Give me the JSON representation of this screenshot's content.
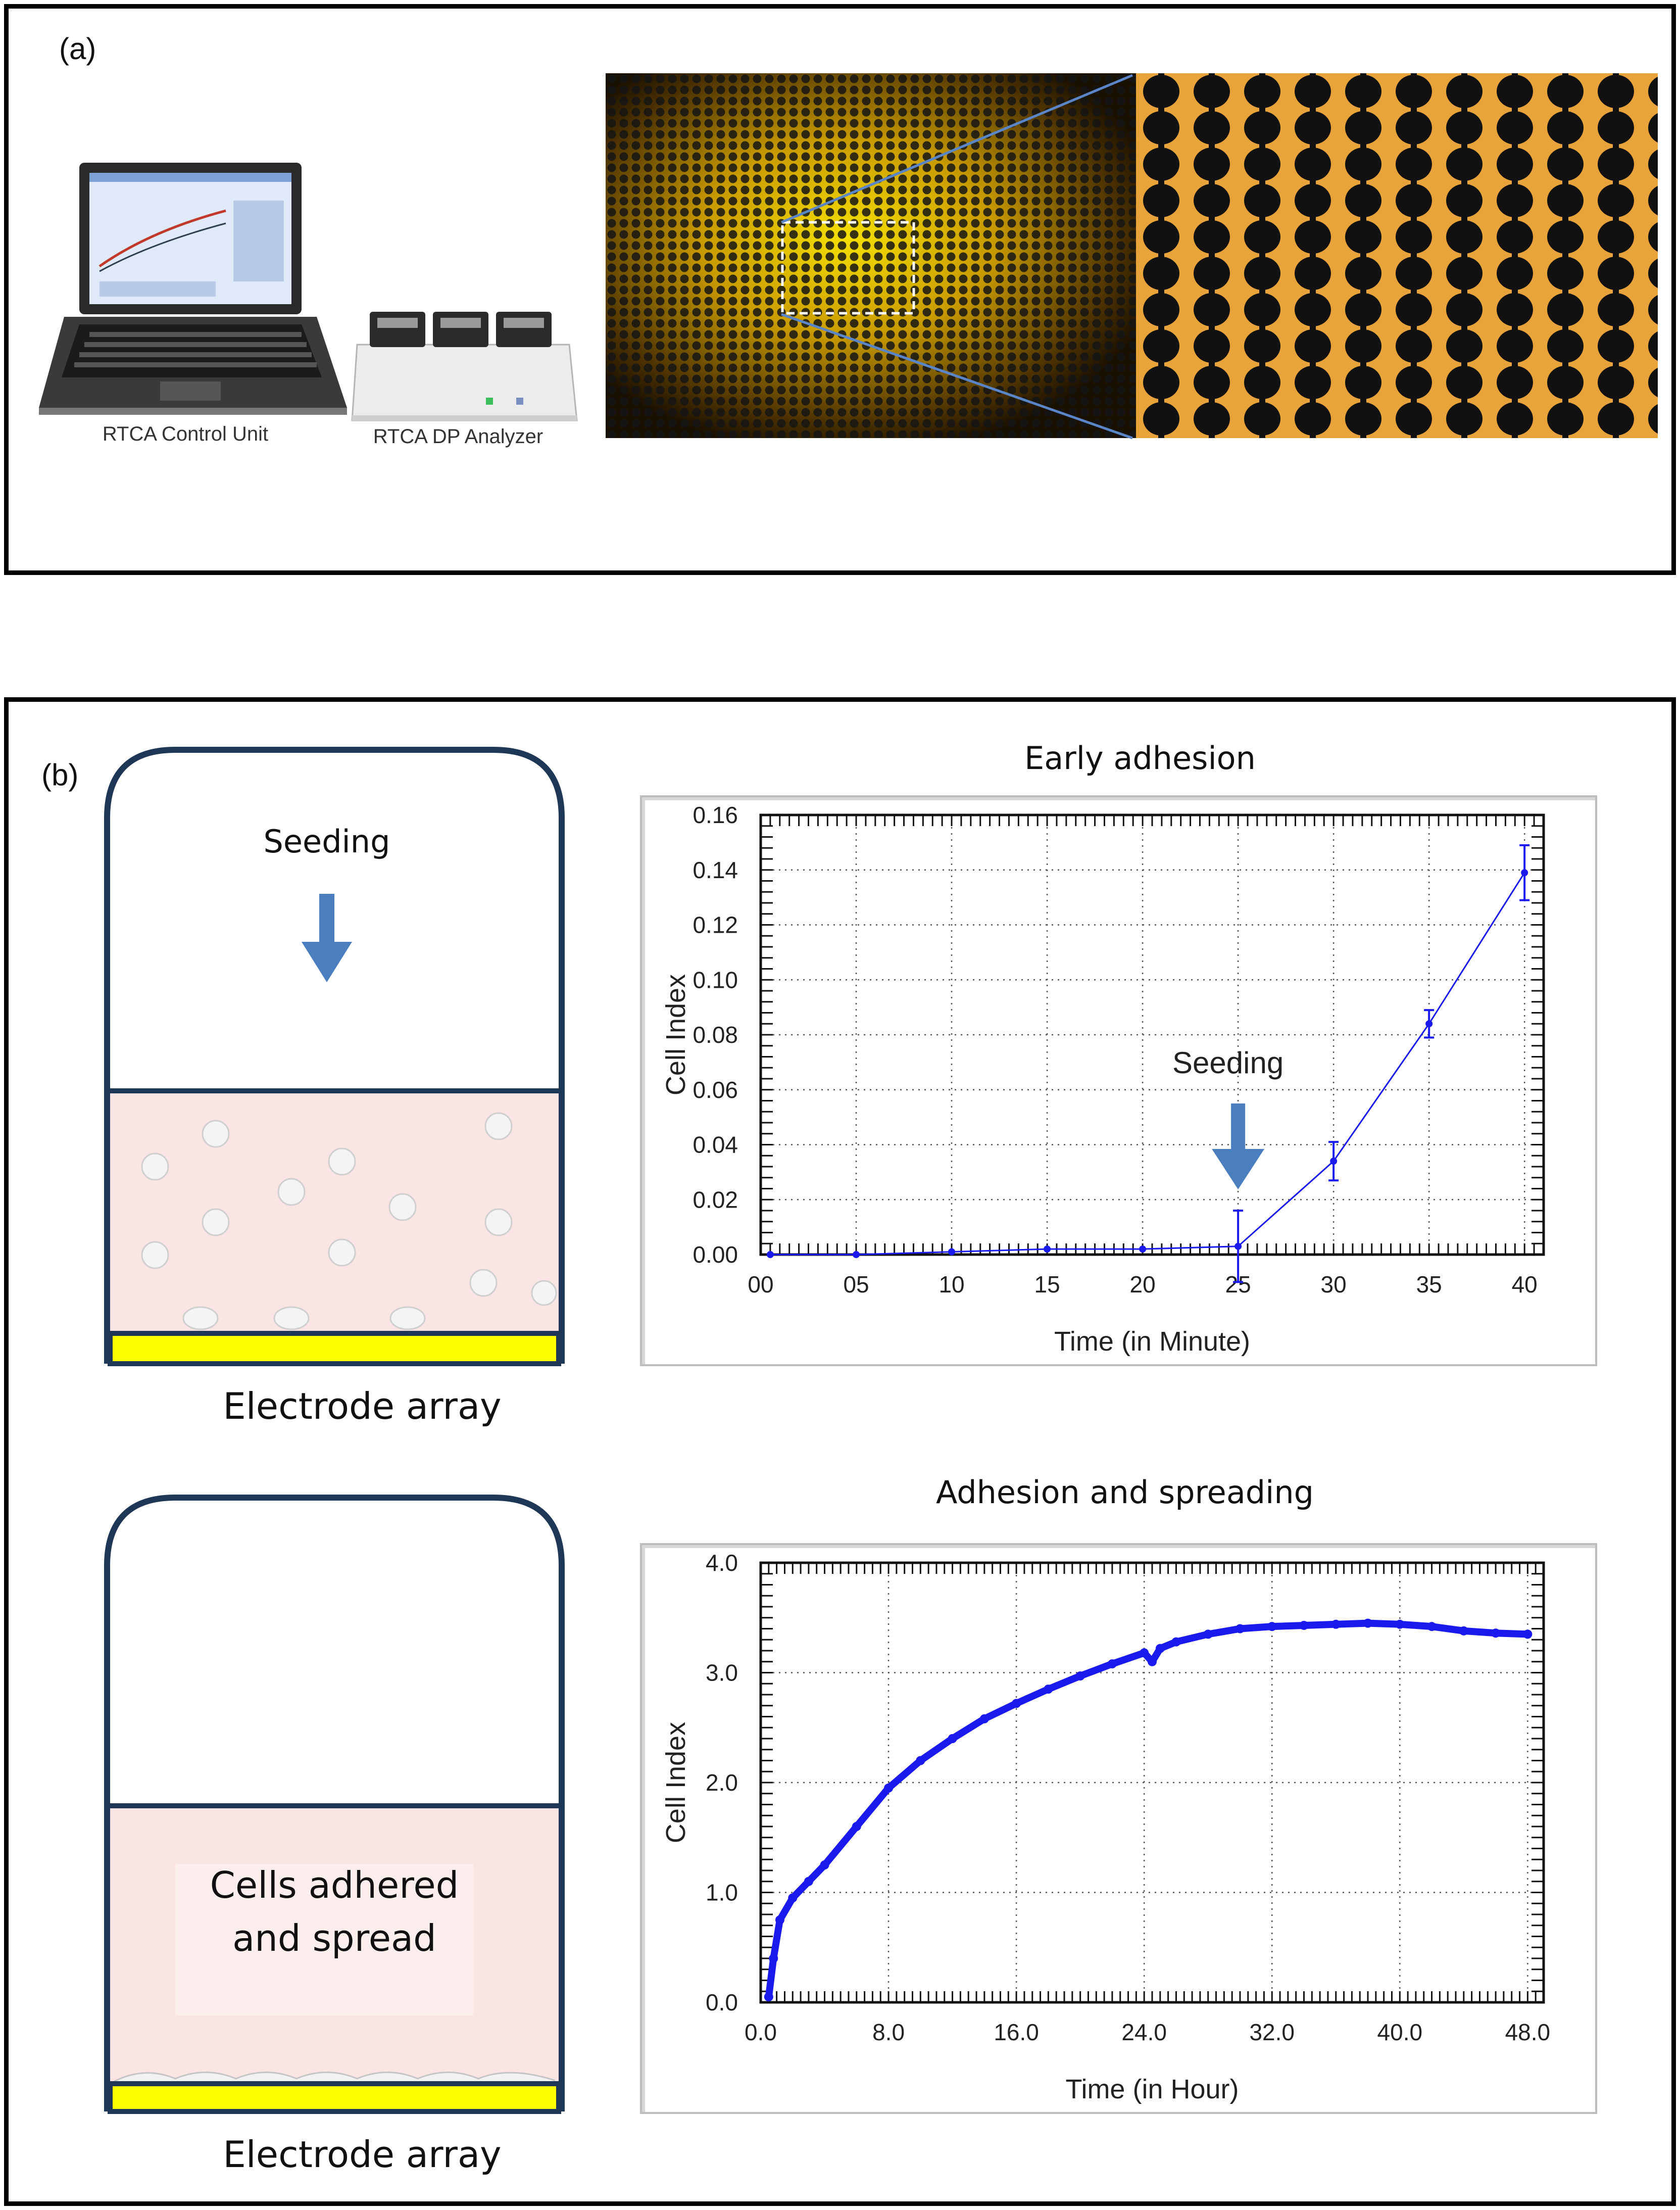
{
  "panel_a": {
    "label": "(a)",
    "laptop_caption": "RTCA Control Unit",
    "analyzer_caption": "RTCA DP Analyzer"
  },
  "panel_b": {
    "label": "(b)",
    "well_top": {
      "label": "Seeding",
      "caption": "Electrode array"
    },
    "well_bottom": {
      "label_line1": "Cells adhered",
      "label_line2": "and spread",
      "caption": "Electrode array"
    }
  },
  "colors": {
    "well_fill": "#fbe4e4",
    "well_outline": "#1f3756",
    "electrode": "#ffff00",
    "arrow": "#4a7ebf",
    "series": "#1a1aee"
  },
  "chart_data": [
    {
      "type": "line",
      "title": "Early adhesion",
      "xlabel": "Time (in Minute)",
      "ylabel": "Cell Index",
      "x_tick_labels": [
        "00",
        "05",
        "10",
        "15",
        "20",
        "25",
        "30",
        "35",
        "40"
      ],
      "y_tick_labels": [
        "0.00",
        "0.02",
        "0.04",
        "0.06",
        "0.08",
        "0.10",
        "0.12",
        "0.14",
        "0.16"
      ],
      "xlim": [
        0,
        41
      ],
      "ylim": [
        0,
        0.16
      ],
      "grid": true,
      "annotation": "Seeding",
      "annotation_x": 25,
      "series": [
        {
          "x": [
            0.5,
            5,
            10,
            15,
            20,
            25,
            30,
            35,
            40
          ],
          "y": [
            0.0,
            0.0,
            0.001,
            0.002,
            0.002,
            0.003,
            0.034,
            0.084,
            0.139
          ],
          "err": [
            0,
            0,
            0,
            0,
            0,
            0.013,
            0.007,
            0.005,
            0.01
          ]
        }
      ]
    },
    {
      "type": "line",
      "title": "Adhesion and spreading",
      "xlabel": "Time (in Hour)",
      "ylabel": "Cell Index",
      "x_tick_labels": [
        "0.0",
        "8.0",
        "16.0",
        "24.0",
        "32.0",
        "40.0",
        "48.0"
      ],
      "y_tick_labels": [
        "0.0",
        "1.0",
        "2.0",
        "3.0",
        "4.0"
      ],
      "xlim": [
        0,
        49
      ],
      "ylim": [
        0,
        4.0
      ],
      "grid": true,
      "series": [
        {
          "x": [
            0.5,
            0.8,
            1.2,
            2.0,
            3.0,
            4.0,
            6.0,
            8.0,
            10.0,
            12.0,
            14.0,
            16.0,
            18.0,
            20.0,
            22.0,
            24.0,
            24.5,
            25.0,
            26.0,
            28.0,
            30.0,
            32.0,
            34.0,
            36.0,
            38.0,
            40.0,
            42.0,
            44.0,
            46.0,
            48.0
          ],
          "y": [
            0.05,
            0.4,
            0.75,
            0.95,
            1.1,
            1.25,
            1.6,
            1.95,
            2.2,
            2.4,
            2.58,
            2.72,
            2.85,
            2.97,
            3.08,
            3.18,
            3.1,
            3.22,
            3.28,
            3.35,
            3.4,
            3.42,
            3.43,
            3.44,
            3.45,
            3.44,
            3.42,
            3.38,
            3.36,
            3.35
          ]
        }
      ]
    }
  ]
}
